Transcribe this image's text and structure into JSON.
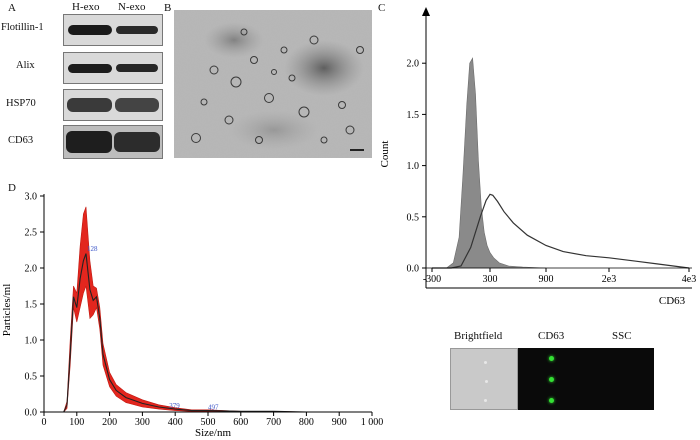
{
  "panels": {
    "a": {
      "label": "A",
      "lanes": [
        "H-exo",
        "N-exo"
      ],
      "proteins": [
        "Flotillin-1",
        "Alix",
        "HSP70",
        "CD63"
      ]
    },
    "b": {
      "label": "B"
    },
    "c": {
      "label": "C",
      "images": {
        "columns": [
          "Brightfield",
          "CD63",
          "SSC"
        ],
        "colors": {
          "brightfield": "#c9c9c9",
          "fluorescence": "#0a0a0a",
          "dot": "#34e034"
        }
      }
    },
    "d": {
      "label": "D"
    }
  },
  "chart_data": [
    {
      "type": "area",
      "panel": "C",
      "title": "",
      "xlabel": "CD63",
      "ylabel": "Count",
      "x_ticks": [
        "-300",
        "300",
        "900",
        "2e3",
        "4e3"
      ],
      "y_ticks": [
        "0.0",
        "0.5",
        "1.0",
        "1.5",
        "2.0"
      ],
      "ylim": [
        0,
        2.5
      ],
      "series": [
        {
          "name": "control (filled)",
          "color": "#8a8a8a",
          "x": [
            -300,
            -150,
            -80,
            -20,
            20,
            60,
            90,
            120,
            150,
            180,
            210,
            240,
            270,
            300,
            340,
            400,
            500,
            650,
            900
          ],
          "values": [
            0,
            0,
            0.05,
            0.3,
            0.9,
            1.6,
            2.0,
            2.05,
            1.7,
            1.05,
            0.6,
            0.35,
            0.22,
            0.15,
            0.1,
            0.05,
            0.02,
            0.01,
            0
          ]
        },
        {
          "name": "CD63 (line)",
          "color": "#333333",
          "x": [
            -300,
            -100,
            0,
            100,
            200,
            260,
            300,
            330,
            380,
            450,
            550,
            700,
            900,
            1200,
            1600,
            2000,
            2600,
            3200,
            4000
          ],
          "values": [
            0,
            0,
            0.02,
            0.2,
            0.5,
            0.66,
            0.72,
            0.71,
            0.65,
            0.55,
            0.44,
            0.32,
            0.22,
            0.16,
            0.12,
            0.1,
            0.07,
            0.04,
            0
          ]
        }
      ]
    },
    {
      "type": "line",
      "panel": "D",
      "title": "",
      "xlabel": "Size/nm",
      "ylabel": "Particles/ml",
      "x_ticks": [
        "0",
        "100",
        "200",
        "300",
        "400",
        "500",
        "600",
        "700",
        "800",
        "900",
        "1 000"
      ],
      "y_ticks": [
        "0.0",
        "0.5",
        "1.0",
        "1.5",
        "2.0",
        "2.5",
        "3.0"
      ],
      "xlim": [
        0,
        1000
      ],
      "ylim": [
        0,
        3.0
      ],
      "annotations": [
        {
          "text": "128",
          "x": 128,
          "y": 2.22
        },
        {
          "text": "379",
          "x": 379,
          "y": 0.04
        },
        {
          "text": "497",
          "x": 497,
          "y": 0.02
        }
      ],
      "series": [
        {
          "name": "mean",
          "x": [
            60,
            70,
            80,
            90,
            100,
            110,
            120,
            128,
            140,
            150,
            160,
            170,
            180,
            200,
            220,
            250,
            300,
            350,
            400,
            450,
            500,
            600,
            700,
            800,
            900,
            1000
          ],
          "values": [
            0,
            0.1,
            0.8,
            1.6,
            1.45,
            1.85,
            2.1,
            2.2,
            1.7,
            1.55,
            1.6,
            1.3,
            0.8,
            0.45,
            0.3,
            0.2,
            0.12,
            0.07,
            0.04,
            0.02,
            0.02,
            0.01,
            0.01,
            0,
            0,
            0
          ]
        },
        {
          "name": "upper band",
          "x": [
            60,
            70,
            80,
            90,
            100,
            110,
            120,
            128,
            140,
            150,
            160,
            170,
            180,
            200,
            220,
            250,
            300,
            350,
            400,
            450,
            500,
            600,
            700,
            800,
            900,
            1000
          ],
          "values": [
            0,
            0.15,
            1.0,
            1.75,
            1.65,
            2.3,
            2.75,
            2.85,
            2.1,
            1.75,
            1.72,
            1.45,
            0.95,
            0.55,
            0.38,
            0.27,
            0.17,
            0.1,
            0.06,
            0.03,
            0.03,
            0.01,
            0.01,
            0,
            0,
            0
          ]
        },
        {
          "name": "lower band",
          "x": [
            60,
            70,
            80,
            90,
            100,
            110,
            120,
            128,
            140,
            150,
            160,
            170,
            180,
            200,
            220,
            250,
            300,
            350,
            400,
            450,
            500,
            600,
            700,
            800,
            900,
            1000
          ],
          "values": [
            0,
            0.05,
            0.65,
            1.45,
            1.25,
            1.45,
            1.65,
            1.75,
            1.3,
            1.35,
            1.45,
            1.15,
            0.65,
            0.35,
            0.22,
            0.13,
            0.07,
            0.04,
            0.02,
            0.01,
            0.01,
            0,
            0,
            0,
            0,
            0
          ]
        }
      ]
    }
  ]
}
